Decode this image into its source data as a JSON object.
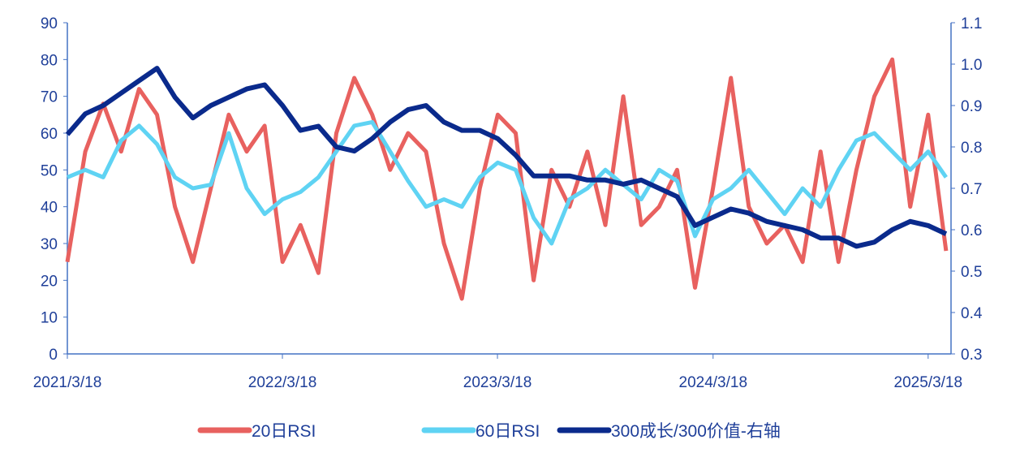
{
  "chart_data": {
    "type": "line",
    "title": "",
    "x_start": "2021/3/18",
    "x_step": "1 month",
    "x_ticks": [
      "2021/3/18",
      "2022/3/18",
      "2023/3/18",
      "2024/3/18",
      "2025/3/18"
    ],
    "y_left": {
      "range": [
        0,
        90
      ],
      "ticks": [
        0,
        10,
        20,
        30,
        40,
        50,
        60,
        70,
        80,
        90
      ]
    },
    "y_right": {
      "range": [
        0.3,
        1.1
      ],
      "ticks": [
        "0.3",
        "0.4",
        "0.5",
        "0.6",
        "0.7",
        "0.8",
        "0.9",
        "1.0",
        "1.1"
      ]
    },
    "grid": false,
    "legend_placement": "bottom",
    "series": [
      {
        "name": "20日RSI",
        "axis": "left",
        "color": "#e8615f",
        "values": [
          25,
          55,
          68,
          55,
          72,
          65,
          40,
          25,
          45,
          65,
          55,
          62,
          25,
          35,
          22,
          60,
          75,
          65,
          50,
          60,
          55,
          30,
          15,
          45,
          65,
          60,
          20,
          50,
          40,
          55,
          35,
          70,
          35,
          40,
          50,
          18,
          45,
          75,
          40,
          30,
          35,
          25,
          55,
          25,
          50,
          70,
          80,
          40,
          65,
          28
        ]
      },
      {
        "name": "60日RSI",
        "axis": "left",
        "color": "#5fd3f3",
        "values": [
          48,
          50,
          48,
          58,
          62,
          57,
          48,
          45,
          46,
          60,
          45,
          38,
          42,
          44,
          48,
          55,
          62,
          63,
          55,
          47,
          40,
          42,
          40,
          48,
          52,
          50,
          37,
          30,
          42,
          45,
          50,
          46,
          42,
          50,
          47,
          32,
          42,
          45,
          50,
          44,
          38,
          45,
          40,
          50,
          58,
          60,
          55,
          50,
          55,
          48
        ]
      },
      {
        "name": "300成长/300价值-右轴",
        "axis": "right",
        "color": "#0a2a8c",
        "values": [
          0.83,
          0.88,
          0.9,
          0.93,
          0.96,
          0.99,
          0.92,
          0.87,
          0.9,
          0.92,
          0.94,
          0.95,
          0.9,
          0.84,
          0.85,
          0.8,
          0.79,
          0.82,
          0.86,
          0.89,
          0.9,
          0.86,
          0.84,
          0.84,
          0.82,
          0.78,
          0.73,
          0.73,
          0.73,
          0.72,
          0.72,
          0.71,
          0.72,
          0.7,
          0.68,
          0.61,
          0.63,
          0.65,
          0.64,
          0.62,
          0.61,
          0.6,
          0.58,
          0.58,
          0.56,
          0.57,
          0.6,
          0.62,
          0.61,
          0.59
        ]
      }
    ]
  }
}
